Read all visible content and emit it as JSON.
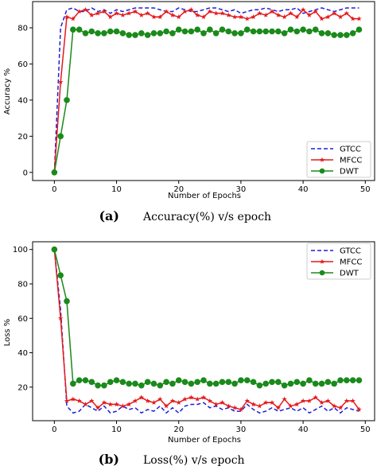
{
  "chart_data": [
    {
      "type": "line",
      "caption_tag": "(a)",
      "caption": "Accuracy(%) v/s epoch",
      "xlabel": "Number of Epochs",
      "ylabel": "Accuracy %",
      "xlim": [
        -3.5,
        51.5
      ],
      "ylim": [
        -4.5,
        94.5
      ],
      "xticks": [
        0,
        10,
        20,
        30,
        40,
        50
      ],
      "yticks": [
        0,
        20,
        40,
        60,
        80
      ],
      "legend": "bottom-right",
      "series": [
        {
          "name": "GTCC",
          "color": "#1f1fd6",
          "style": "dashed",
          "marker": "none",
          "x": [
            0,
            1,
            2,
            3,
            4,
            5,
            6,
            7,
            8,
            9,
            10,
            11,
            12,
            13,
            14,
            15,
            16,
            17,
            18,
            19,
            20,
            21,
            22,
            23,
            24,
            25,
            26,
            27,
            28,
            29,
            30,
            31,
            32,
            33,
            34,
            35,
            36,
            37,
            38,
            39,
            40,
            41,
            42,
            43,
            44,
            45,
            46,
            47,
            48,
            49
          ],
          "y": [
            0,
            80,
            90,
            91,
            89,
            89,
            91,
            89,
            90,
            88,
            90,
            89,
            90,
            91,
            91,
            91,
            91,
            90,
            89,
            89,
            91,
            90,
            89,
            89,
            90,
            91,
            91,
            90,
            89,
            90,
            88,
            89,
            90,
            90,
            91,
            90,
            89,
            90,
            90,
            91,
            88,
            89,
            90,
            91,
            90,
            89,
            90,
            91,
            91,
            91
          ]
        },
        {
          "name": "MFCC",
          "color": "#e41a1c",
          "style": "solid",
          "marker": "star",
          "x": [
            0,
            1,
            2,
            3,
            4,
            5,
            6,
            7,
            8,
            9,
            10,
            11,
            12,
            13,
            14,
            15,
            16,
            17,
            18,
            19,
            20,
            21,
            22,
            23,
            24,
            25,
            26,
            27,
            28,
            29,
            30,
            31,
            32,
            33,
            34,
            35,
            36,
            37,
            38,
            39,
            40,
            41,
            42,
            43,
            44,
            45,
            46,
            47,
            48,
            49
          ],
          "y": [
            0,
            50,
            86,
            85,
            89,
            90,
            87,
            88,
            89,
            86,
            88,
            87,
            88,
            89,
            87,
            88,
            86,
            86,
            89,
            87,
            86,
            89,
            90,
            87,
            86,
            89,
            88,
            88,
            87,
            86,
            86,
            85,
            86,
            88,
            87,
            89,
            87,
            86,
            88,
            86,
            90,
            87,
            89,
            85,
            86,
            88,
            86,
            88,
            85,
            85
          ]
        },
        {
          "name": "DWT",
          "color": "#1a8a1a",
          "style": "solid",
          "marker": "circle",
          "x": [
            0,
            1,
            2,
            3,
            4,
            5,
            6,
            7,
            8,
            9,
            10,
            11,
            12,
            13,
            14,
            15,
            16,
            17,
            18,
            19,
            20,
            21,
            22,
            23,
            24,
            25,
            26,
            27,
            28,
            29,
            30,
            31,
            32,
            33,
            34,
            35,
            36,
            37,
            38,
            39,
            40,
            41,
            42,
            43,
            44,
            45,
            46,
            47,
            48,
            49
          ],
          "y": [
            0,
            20,
            40,
            79,
            79,
            77,
            78,
            77,
            77,
            78,
            78,
            77,
            76,
            76,
            77,
            76,
            77,
            77,
            78,
            77,
            79,
            78,
            78,
            79,
            77,
            79,
            77,
            79,
            78,
            77,
            77,
            79,
            78,
            78,
            78,
            78,
            78,
            77,
            79,
            78,
            79,
            78,
            79,
            77,
            77,
            76,
            76,
            76,
            77,
            79
          ]
        }
      ]
    },
    {
      "type": "line",
      "caption_tag": "(b)",
      "caption": "Loss(%) v/s epoch",
      "xlabel": "Number of Epochs",
      "ylabel": "Loss %",
      "xlim": [
        -3.5,
        51.5
      ],
      "ylim": [
        0.5,
        104.5
      ],
      "xticks": [
        0,
        10,
        20,
        30,
        40,
        50
      ],
      "yticks": [
        20,
        40,
        60,
        80,
        100
      ],
      "legend": "top-right",
      "series": [
        {
          "name": "GTCC",
          "color": "#1f1fd6",
          "style": "dashed",
          "marker": "none",
          "x": [
            0,
            1,
            2,
            3,
            4,
            5,
            6,
            7,
            8,
            9,
            10,
            11,
            12,
            13,
            14,
            15,
            16,
            17,
            18,
            19,
            20,
            21,
            22,
            23,
            24,
            25,
            26,
            27,
            28,
            29,
            30,
            31,
            32,
            33,
            34,
            35,
            36,
            37,
            38,
            39,
            40,
            41,
            42,
            43,
            44,
            45,
            46,
            47,
            48,
            49
          ],
          "y": [
            100,
            65,
            9,
            5,
            6,
            10,
            8,
            6,
            9,
            5,
            6,
            9,
            7,
            8,
            5,
            7,
            6,
            9,
            5,
            8,
            5,
            9,
            10,
            10,
            11,
            8,
            9,
            7,
            8,
            6,
            6,
            10,
            7,
            5,
            6,
            8,
            6,
            7,
            8,
            6,
            8,
            5,
            7,
            9,
            6,
            8,
            5,
            8,
            7,
            6
          ]
        },
        {
          "name": "MFCC",
          "color": "#e41a1c",
          "style": "solid",
          "marker": "star",
          "x": [
            0,
            1,
            2,
            3,
            4,
            5,
            6,
            7,
            8,
            9,
            10,
            11,
            12,
            13,
            14,
            15,
            16,
            17,
            18,
            19,
            20,
            21,
            22,
            23,
            24,
            25,
            26,
            27,
            28,
            29,
            30,
            31,
            32,
            33,
            34,
            35,
            36,
            37,
            38,
            39,
            40,
            41,
            42,
            43,
            44,
            45,
            46,
            47,
            48,
            49
          ],
          "y": [
            100,
            60,
            12,
            13,
            12,
            10,
            12,
            8,
            11,
            10,
            10,
            9,
            10,
            12,
            14,
            12,
            11,
            13,
            9,
            12,
            11,
            13,
            14,
            13,
            14,
            12,
            10,
            11,
            9,
            8,
            7,
            12,
            10,
            9,
            11,
            11,
            8,
            13,
            9,
            10,
            12,
            12,
            14,
            11,
            12,
            9,
            8,
            12,
            12,
            7
          ]
        },
        {
          "name": "DWT",
          "color": "#1a8a1a",
          "style": "solid",
          "marker": "circle",
          "x": [
            0,
            1,
            2,
            3,
            4,
            5,
            6,
            7,
            8,
            9,
            10,
            11,
            12,
            13,
            14,
            15,
            16,
            17,
            18,
            19,
            20,
            21,
            22,
            23,
            24,
            25,
            26,
            27,
            28,
            29,
            30,
            31,
            32,
            33,
            34,
            35,
            36,
            37,
            38,
            39,
            40,
            41,
            42,
            43,
            44,
            45,
            46,
            47,
            48,
            49
          ],
          "y": [
            100,
            85,
            70,
            22,
            24,
            24,
            23,
            21,
            21,
            23,
            24,
            23,
            22,
            22,
            21,
            23,
            22,
            21,
            23,
            22,
            24,
            23,
            22,
            23,
            24,
            22,
            22,
            23,
            23,
            22,
            24,
            24,
            23,
            21,
            22,
            23,
            23,
            21,
            22,
            23,
            22,
            24,
            22,
            22,
            23,
            22,
            24,
            24,
            24,
            24
          ]
        }
      ]
    }
  ]
}
